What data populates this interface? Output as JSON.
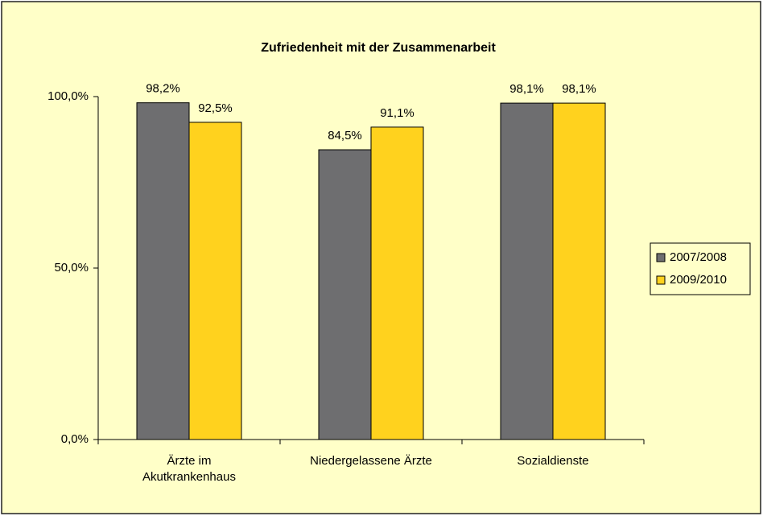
{
  "chart_data": {
    "type": "bar",
    "title": "Zufriedenheit mit der Zusammenarbeit",
    "categories": [
      "Ärzte im\nAkutkrankenhaus",
      "Niedergelassene Ärzte",
      "Sozialdienste"
    ],
    "series": [
      {
        "name": "2007/2008",
        "color": "#6e6e70",
        "values": [
          98.2,
          84.5,
          98.1
        ],
        "value_labels": [
          "98,2%",
          "84,5%",
          "98,1%"
        ]
      },
      {
        "name": "2009/2010",
        "color": "#ffd21e",
        "values": [
          92.5,
          91.1,
          98.1
        ],
        "value_labels": [
          "92,5%",
          "91,1%",
          "98,1%"
        ]
      }
    ],
    "ylim": [
      0,
      100
    ],
    "yticks": [
      {
        "value": 0,
        "label": "0,0%"
      },
      {
        "value": 50,
        "label": "50,0%"
      },
      {
        "value": 100,
        "label": "100,0%"
      }
    ],
    "grid": false,
    "legend": "right",
    "background": "#ffffc8"
  }
}
